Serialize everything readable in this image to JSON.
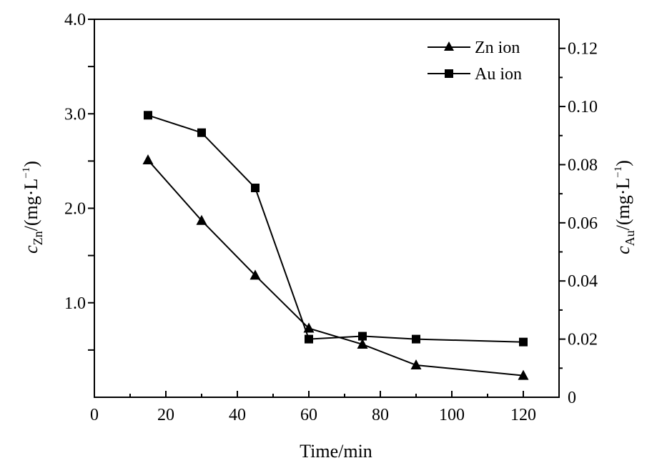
{
  "chart_data": {
    "type": "line",
    "x": [
      15,
      30,
      45,
      60,
      75,
      90,
      120
    ],
    "xlabel": "Time/min",
    "xlim": [
      0,
      130
    ],
    "xticks": [
      0,
      20,
      40,
      60,
      80,
      100,
      120
    ],
    "ylabel_left": {
      "c": "c",
      "sub": "Zn",
      "unit": "/(mg·L",
      "sup": "−1",
      "close": ")"
    },
    "ylabel_right": {
      "c": "c",
      "sub": "Au",
      "unit": "/(mg·L",
      "sup": "−1",
      "close": ")"
    },
    "ylim_left": [
      0,
      4.0
    ],
    "yticks_left": [
      "1.0",
      "2.0",
      "3.0",
      "4.0"
    ],
    "ylim_right": [
      0,
      0.13
    ],
    "yticks_right": [
      "0",
      "0.02",
      "0.04",
      "0.06",
      "0.08",
      "0.10",
      "0.12"
    ],
    "series": [
      {
        "name": "Zn ion",
        "axis": "left",
        "marker": "triangle",
        "values": [
          2.51,
          1.87,
          1.29,
          0.73,
          0.56,
          0.34,
          0.23
        ]
      },
      {
        "name": "Au ion",
        "axis": "right",
        "marker": "square",
        "values": [
          0.097,
          0.091,
          0.072,
          0.02,
          0.021,
          0.02,
          0.019
        ]
      }
    ],
    "legend_position": "top-right"
  }
}
